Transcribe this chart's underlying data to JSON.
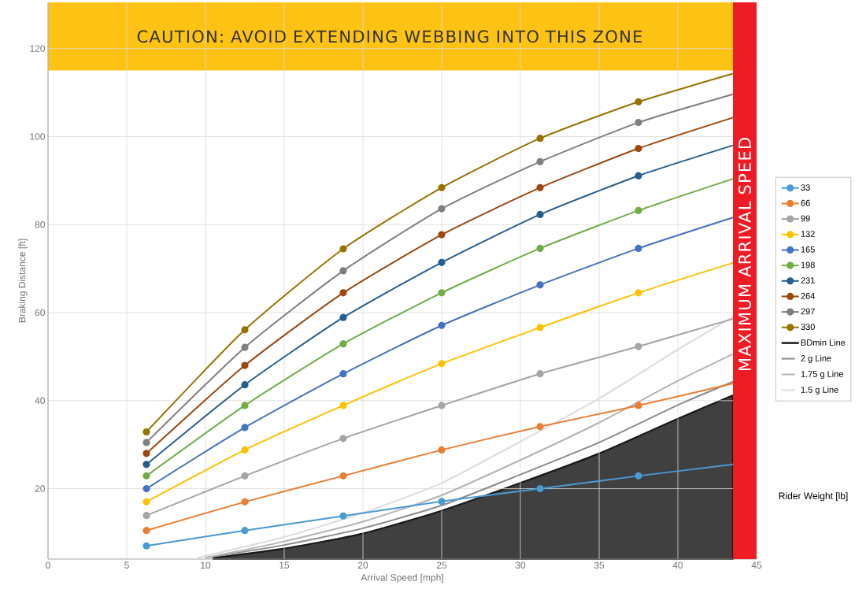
{
  "chart_data": {
    "type": "line",
    "xlabel": "Arrival Speed [mph]",
    "ylabel": "Braking Distance [ft]",
    "legend_title": "Rider Weight [lb]",
    "x": [
      6.25,
      12.5,
      18.75,
      25,
      31.25,
      37.5,
      43.5
    ],
    "xlim": [
      0,
      45
    ],
    "ylim": [
      4,
      130.5
    ],
    "xticks": [
      0,
      5,
      10,
      15,
      20,
      25,
      30,
      35,
      40,
      45
    ],
    "yticks": [
      20,
      40,
      60,
      80,
      100,
      120
    ],
    "grid": true,
    "legend": "right",
    "marker": "circle",
    "series": [
      {
        "name": "33",
        "color": "#4a9ad4",
        "values": [
          7.0,
          10.5,
          13.8,
          17.1,
          20.0,
          22.9,
          25.5
        ]
      },
      {
        "name": "66",
        "color": "#ed7d31",
        "values": [
          10.5,
          17.0,
          22.9,
          28.8,
          34.1,
          38.9,
          43.9
        ]
      },
      {
        "name": "99",
        "color": "#a5a5a5",
        "values": [
          13.9,
          22.9,
          31.4,
          38.9,
          46.1,
          52.3,
          58.6
        ]
      },
      {
        "name": "132",
        "color": "#ffc000",
        "values": [
          17.0,
          28.8,
          38.9,
          48.4,
          56.6,
          64.5,
          71.3
        ]
      },
      {
        "name": "165",
        "color": "#4472c4",
        "values": [
          20.0,
          33.9,
          46.1,
          57.1,
          66.3,
          74.6,
          81.6
        ]
      },
      {
        "name": "198",
        "color": "#70ad47",
        "values": [
          22.9,
          38.9,
          52.9,
          64.5,
          74.6,
          83.2,
          90.4
        ]
      },
      {
        "name": "231",
        "color": "#255e91",
        "values": [
          25.5,
          43.6,
          58.9,
          71.4,
          82.3,
          91.1,
          98.0
        ]
      },
      {
        "name": "264",
        "color": "#9e480e",
        "values": [
          28.0,
          48.0,
          64.5,
          77.7,
          88.4,
          97.3,
          104.3
        ]
      },
      {
        "name": "297",
        "color": "#7f7f7f",
        "values": [
          30.5,
          52.1,
          69.5,
          83.6,
          94.3,
          103.2,
          109.6
        ]
      },
      {
        "name": "330",
        "color": "#997300",
        "values": [
          32.9,
          56.1,
          74.5,
          88.4,
          99.6,
          107.9,
          114.3
        ]
      },
      {
        "name": "BDmin Line",
        "type": "area",
        "color": "#404040",
        "marker": "none",
        "x": [
          10.5,
          15,
          20,
          25,
          30,
          35,
          40,
          43.5
        ],
        "values": [
          4.3,
          6.4,
          9.8,
          15.0,
          21.3,
          28.0,
          35.9,
          41.2
        ]
      },
      {
        "name": "2 g Line",
        "color": "#8c8c8c",
        "marker": "none",
        "x": [
          10,
          15,
          20,
          25,
          30,
          35,
          40,
          43.5
        ],
        "values": [
          4.3,
          7.2,
          11.0,
          16.2,
          23.2,
          30.5,
          39.0,
          44.3
        ]
      },
      {
        "name": "1.75 g Line",
        "color": "#b4b4b4",
        "marker": "none",
        "x": [
          10,
          15,
          20,
          25,
          30,
          35,
          40,
          43.5
        ],
        "values": [
          4.3,
          8.0,
          12.5,
          18.5,
          26.5,
          35.0,
          44.5,
          50.6
        ]
      },
      {
        "name": "1.5 g Line",
        "color": "#dcdcdc",
        "marker": "none",
        "x": [
          9.5,
          15,
          20,
          25,
          30,
          35,
          40,
          43.5
        ],
        "values": [
          4.3,
          9.0,
          14.5,
          21.3,
          30.7,
          40.5,
          51.6,
          59.0
        ]
      }
    ],
    "bands": [
      {
        "axis": "y",
        "from": 115,
        "to": 130.5,
        "label": "CAUTION: AVOID EXTENDING WEBBING INTO THIS ZONE",
        "color": "#fdc314"
      },
      {
        "axis": "x",
        "from": 43.5,
        "to": 45,
        "label": "MAXIMUM ARRIVAL SPEED",
        "color": "#ee1c25"
      }
    ]
  }
}
